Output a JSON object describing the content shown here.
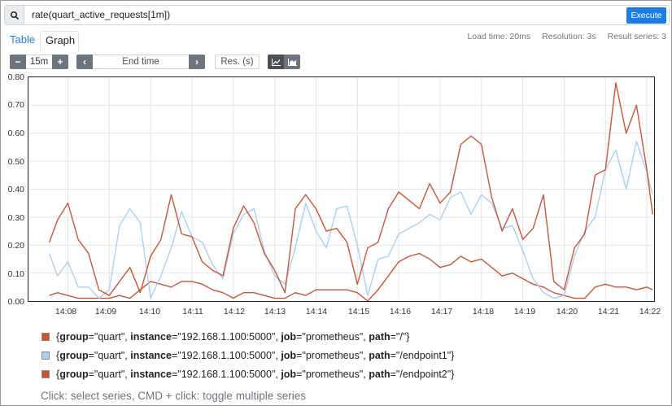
{
  "query": {
    "expression": "rate(quart_active_requests[1m])",
    "execute_label": "Execute",
    "search_icon": "search-icon"
  },
  "tabs": {
    "table": "Table",
    "graph": "Graph"
  },
  "stats": {
    "load_time": "Load time: 20ms",
    "resolution": "Resolution: 3s",
    "result_series": "Result series: 3"
  },
  "controls": {
    "minus": "−",
    "range": "15m",
    "plus": "+",
    "prev": "‹",
    "end_time": "End time",
    "next": "›",
    "res": "Res. (s)",
    "stacked_icon": "line-chart-icon",
    "unstacked_icon": "stacked-chart-icon"
  },
  "legend": [
    {
      "prefix": "{group=\"",
      "k1": "group",
      "group": "quart",
      "instance": "192.168.1.100:5000",
      "job": "prometheus",
      "path": "/",
      "color": "#cb5335"
    },
    {
      "group": "quart",
      "instance": "192.168.1.100:5000",
      "job": "prometheus",
      "path": "/endpoint1",
      "color": "#a9d0f0"
    },
    {
      "group": "quart",
      "instance": "192.168.1.100:5000",
      "job": "prometheus",
      "path": "/endpoint2",
      "color": "#cb5335"
    }
  ],
  "hint": "Click: select series, CMD + click: toggle multiple series",
  "chart_data": {
    "type": "line",
    "ylim": [
      0,
      0.8
    ],
    "yticks": [
      "0.00",
      "0.10",
      "0.20",
      "0.30",
      "0.40",
      "0.50",
      "0.60",
      "0.70",
      "0.80"
    ],
    "xticks": [
      "14:08",
      "14:09",
      "14:10",
      "14:11",
      "14:12",
      "14:13",
      "14:14",
      "14:15",
      "14:16",
      "14:17",
      "14:18",
      "14:19",
      "14:20",
      "14:21",
      "14:22"
    ],
    "x_minutes": [
      7.55,
      7.75,
      8.0,
      8.25,
      8.5,
      8.75,
      9.0,
      9.25,
      9.5,
      9.75,
      10.0,
      10.25,
      10.5,
      10.75,
      11.0,
      11.25,
      11.5,
      11.75,
      12.0,
      12.25,
      12.5,
      12.75,
      13.0,
      13.25,
      13.5,
      13.75,
      14.0,
      14.25,
      14.5,
      14.75,
      15.0,
      15.25,
      15.5,
      15.75,
      16.0,
      16.25,
      16.5,
      16.75,
      17.0,
      17.25,
      17.5,
      17.75,
      18.0,
      18.25,
      18.5,
      18.75,
      19.0,
      19.25,
      19.5,
      19.75,
      20.0,
      20.25,
      20.5,
      20.75,
      21.0,
      21.25,
      21.5,
      21.75,
      22.0,
      22.27
    ],
    "series": [
      {
        "name": "{group=\"quart\", instance=\"192.168.1.100:5000\", job=\"prometheus\", path=\"/\"}",
        "color": "#cb5335",
        "values": [
          0.02,
          0.03,
          0.02,
          0.01,
          0.01,
          0.01,
          0.01,
          0.02,
          0.01,
          0.04,
          0.07,
          0.06,
          0.05,
          0.07,
          0.07,
          0.06,
          0.04,
          0.03,
          0.01,
          0.03,
          0.03,
          0.02,
          0.01,
          0.01,
          0.03,
          0.02,
          0.04,
          0.04,
          0.04,
          0.04,
          0.03,
          0.0,
          0.04,
          0.09,
          0.14,
          0.16,
          0.17,
          0.15,
          0.12,
          0.13,
          0.16,
          0.14,
          0.15,
          0.12,
          0.09,
          0.1,
          0.08,
          0.06,
          0.05,
          0.03,
          0.02,
          0.01,
          0.01,
          0.05,
          0.06,
          0.05,
          0.05,
          0.04,
          0.05,
          0.04
        ]
      },
      {
        "name": "{group=\"quart\", instance=\"192.168.1.100:5000\", job=\"prometheus\", path=\"/endpoint1\"}",
        "color": "#a9d0f0",
        "values": [
          0.17,
          0.09,
          0.14,
          0.05,
          0.05,
          0.01,
          0.04,
          0.27,
          0.33,
          0.28,
          0.01,
          0.09,
          0.19,
          0.32,
          0.23,
          0.21,
          0.13,
          0.08,
          0.24,
          0.31,
          0.33,
          0.18,
          0.09,
          0.06,
          0.19,
          0.35,
          0.25,
          0.19,
          0.33,
          0.34,
          0.2,
          0.02,
          0.15,
          0.16,
          0.24,
          0.26,
          0.28,
          0.31,
          0.29,
          0.37,
          0.39,
          0.31,
          0.38,
          0.35,
          0.26,
          0.27,
          0.18,
          0.08,
          0.03,
          0.01,
          0.02,
          0.16,
          0.25,
          0.3,
          0.47,
          0.54,
          0.4,
          0.57,
          0.46,
          0.38
        ]
      },
      {
        "name": "{group=\"quart\", instance=\"192.168.1.100:5000\", job=\"prometheus\", path=\"/endpoint2\"}",
        "color": "#cb5335",
        "values": [
          0.21,
          0.29,
          0.35,
          0.22,
          0.17,
          0.04,
          0.02,
          0.07,
          0.12,
          0.03,
          0.16,
          0.22,
          0.38,
          0.24,
          0.23,
          0.14,
          0.11,
          0.09,
          0.26,
          0.34,
          0.28,
          0.17,
          0.11,
          0.03,
          0.33,
          0.38,
          0.33,
          0.25,
          0.26,
          0.21,
          0.06,
          0.19,
          0.21,
          0.33,
          0.39,
          0.36,
          0.33,
          0.42,
          0.35,
          0.39,
          0.56,
          0.59,
          0.56,
          0.37,
          0.25,
          0.33,
          0.22,
          0.26,
          0.38,
          0.07,
          0.04,
          0.19,
          0.24,
          0.45,
          0.47,
          0.78,
          0.6,
          0.7,
          0.47,
          0.31
        ]
      }
    ]
  }
}
